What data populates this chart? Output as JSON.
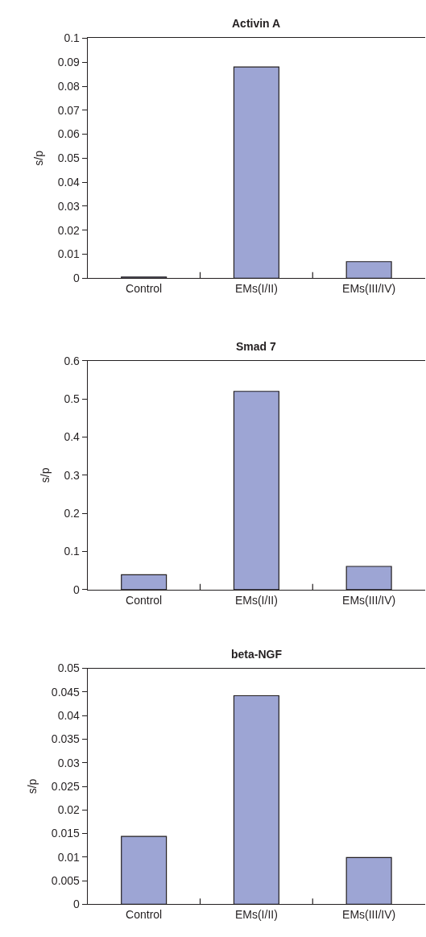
{
  "chart_data": [
    {
      "type": "bar",
      "title": "Activin A",
      "ylabel": "s/p",
      "categories": [
        "Control",
        "EMs(I/II)",
        "EMs(III/IV)"
      ],
      "values": [
        0.0005,
        0.088,
        0.0069
      ],
      "color": "#9da5d4",
      "ylim": [
        0,
        0.1
      ],
      "yticks": [
        0,
        0.01,
        0.02,
        0.03,
        0.04,
        0.05,
        0.06,
        0.07,
        0.08,
        0.09,
        0.1
      ]
    },
    {
      "type": "bar",
      "title": "Smad 7",
      "ylabel": "s/p",
      "categories": [
        "Control",
        "EMs(I/II)",
        "EMs(III/IV)"
      ],
      "values": [
        0.039,
        0.52,
        0.061
      ],
      "color": "#9da5d4",
      "ylim": [
        0,
        0.6
      ],
      "yticks": [
        0,
        0.1,
        0.2,
        0.3,
        0.4,
        0.5,
        0.6
      ]
    },
    {
      "type": "bar",
      "title": "beta-NGF",
      "ylabel": "s/p",
      "categories": [
        "Control",
        "EMs(I/II)",
        "EMs(III/IV)"
      ],
      "values": [
        0.0144,
        0.0442,
        0.0099
      ],
      "color": "#9da5d4",
      "ylim": [
        0,
        0.05
      ],
      "yticks": [
        0,
        0.005,
        0.01,
        0.015,
        0.02,
        0.025,
        0.03,
        0.035,
        0.04,
        0.045,
        0.05
      ]
    }
  ]
}
